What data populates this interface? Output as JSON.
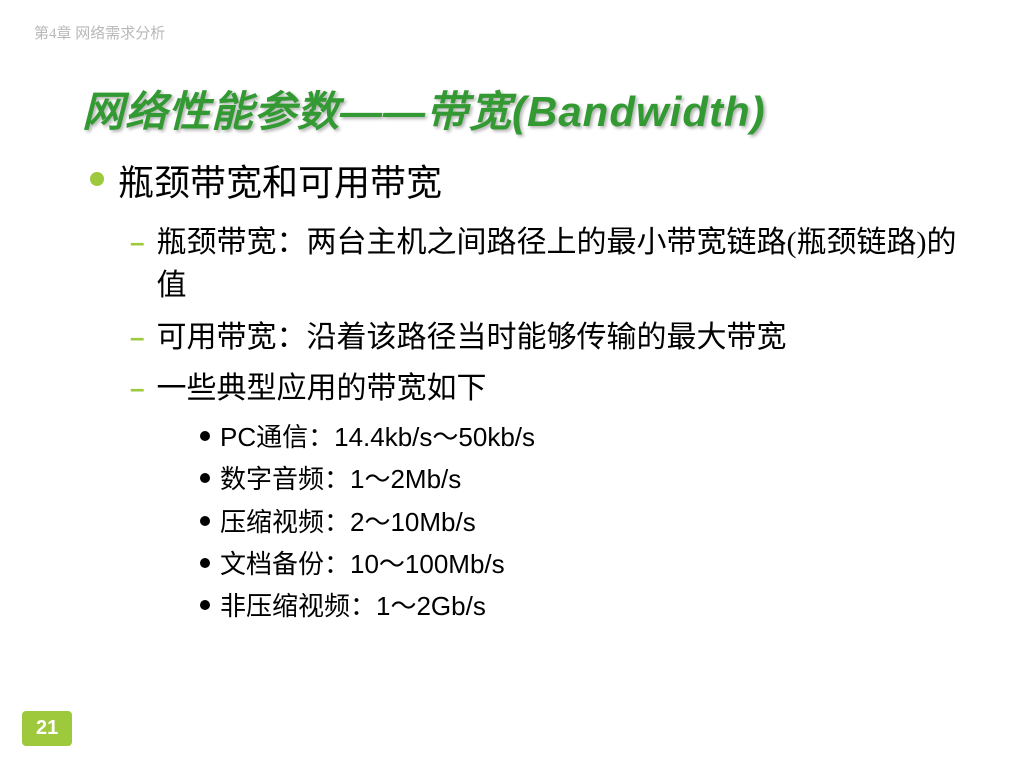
{
  "chapter": "第4章 网络需求分析",
  "title": "网络性能参数——带宽(Bandwidth)",
  "lvl1": {
    "text": "瓶颈带宽和可用带宽"
  },
  "lvl2": [
    {
      "text": "瓶颈带宽：两台主机之间路径上的最小带宽链路(瓶颈链路)的值"
    },
    {
      "text": "可用带宽：沿着该路径当时能够传输的最大带宽"
    },
    {
      "text": "一些典型应用的带宽如下"
    }
  ],
  "lvl3": [
    {
      "text": "PC通信：14.4kb/s～50kb/s"
    },
    {
      "text": "数字音频：1～2Mb/s"
    },
    {
      "text": "压缩视频：2～10Mb/s"
    },
    {
      "text": "文档备份：10～100Mb/s"
    },
    {
      "text": "非压缩视频：1～2Gb/s"
    }
  ],
  "pageNumber": "21",
  "colors": {
    "accent": "#9fc93c",
    "titleColor": "#339933",
    "chapterColor": "#b8b8b8",
    "text": "#000000",
    "bg": "#ffffff"
  },
  "fontsize": {
    "title": 42,
    "lvl1": 36,
    "lvl2": 30,
    "lvl3": 26,
    "chapter": 15,
    "pagenum": 20
  }
}
